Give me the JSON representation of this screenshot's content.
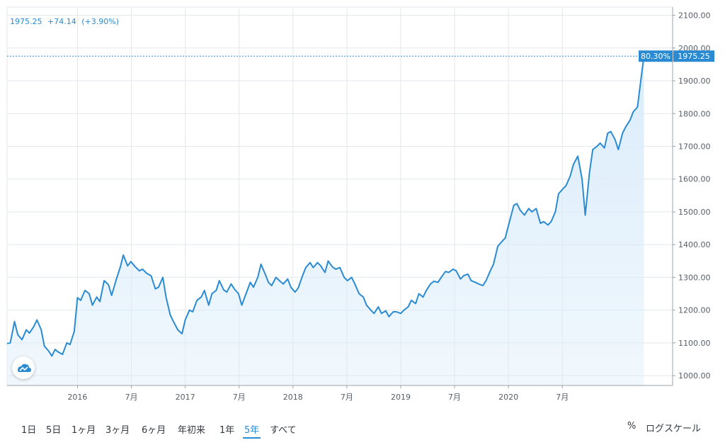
{
  "legend": {
    "price": "1975.25",
    "change": "+74.14",
    "change_pct": "(+3.90%)"
  },
  "last_badge": {
    "pct": "80.30%",
    "price": "1975.25"
  },
  "ranges": [
    {
      "label": "1日",
      "active": false
    },
    {
      "label": "5日",
      "active": false
    },
    {
      "label": "1ヶ月",
      "active": false
    },
    {
      "label": "3ヶ月",
      "active": false
    },
    {
      "label": "6ヶ月",
      "active": false
    },
    {
      "label": "年初来",
      "active": false
    },
    {
      "label": "1年",
      "active": false
    },
    {
      "label": "5年",
      "active": true
    },
    {
      "label": "すべて",
      "active": false
    }
  ],
  "tools": {
    "percent": "%",
    "log_scale": "ログスケール"
  },
  "colors": {
    "line": "#2a8bd2",
    "fill": "#d8ebfa",
    "badge_pct": "#2a8bd2",
    "badge_price": "#2a8bd2",
    "grid": "#e3e8ee"
  },
  "icons": {
    "logo": "tradingview-cloud-icon"
  },
  "chart_data": {
    "type": "area",
    "x_ticks": [
      "2016",
      "7月",
      "2017",
      "7月",
      "2018",
      "7月",
      "2019",
      "7月",
      "2020",
      "7月"
    ],
    "y_ticks": [
      "1000.00",
      "1100.00",
      "1200.00",
      "1300.00",
      "1400.00",
      "1500.00",
      "1600.00",
      "1700.00",
      "1800.00",
      "1900.00",
      "2000.00",
      "2100.00"
    ],
    "ylim": [
      970,
      2125
    ],
    "xlim": [
      0,
      60
    ],
    "grid": true,
    "series": [
      {
        "values": [
          [
            0.0,
            1098
          ],
          [
            0.3,
            1100
          ],
          [
            0.7,
            1165
          ],
          [
            1.0,
            1125
          ],
          [
            1.4,
            1110
          ],
          [
            1.8,
            1140
          ],
          [
            2.1,
            1130
          ],
          [
            2.5,
            1150
          ],
          [
            2.8,
            1170
          ],
          [
            3.2,
            1140
          ],
          [
            3.5,
            1090
          ],
          [
            3.9,
            1075
          ],
          [
            4.2,
            1060
          ],
          [
            4.5,
            1080
          ],
          [
            4.8,
            1072
          ],
          [
            5.2,
            1065
          ],
          [
            5.6,
            1100
          ],
          [
            5.9,
            1095
          ],
          [
            6.3,
            1135
          ],
          [
            6.6,
            1238
          ],
          [
            6.9,
            1230
          ],
          [
            7.3,
            1260
          ],
          [
            7.7,
            1250
          ],
          [
            8.0,
            1215
          ],
          [
            8.4,
            1240
          ],
          [
            8.7,
            1226
          ],
          [
            9.1,
            1290
          ],
          [
            9.5,
            1278
          ],
          [
            9.8,
            1245
          ],
          [
            10.2,
            1290
          ],
          [
            10.6,
            1330
          ],
          [
            10.9,
            1368
          ],
          [
            11.3,
            1335
          ],
          [
            11.6,
            1348
          ],
          [
            12.0,
            1333
          ],
          [
            12.4,
            1320
          ],
          [
            12.7,
            1325
          ],
          [
            13.1,
            1312
          ],
          [
            13.5,
            1305
          ],
          [
            13.9,
            1265
          ],
          [
            14.2,
            1270
          ],
          [
            14.6,
            1300
          ],
          [
            14.9,
            1240
          ],
          [
            15.3,
            1185
          ],
          [
            15.6,
            1165
          ],
          [
            16.0,
            1140
          ],
          [
            16.4,
            1128
          ],
          [
            16.7,
            1170
          ],
          [
            17.1,
            1200
          ],
          [
            17.4,
            1195
          ],
          [
            17.8,
            1230
          ],
          [
            18.2,
            1240
          ],
          [
            18.5,
            1260
          ],
          [
            18.9,
            1215
          ],
          [
            19.2,
            1250
          ],
          [
            19.6,
            1260
          ],
          [
            19.9,
            1290
          ],
          [
            20.3,
            1262
          ],
          [
            20.6,
            1255
          ],
          [
            21.0,
            1280
          ],
          [
            21.3,
            1265
          ],
          [
            21.7,
            1250
          ],
          [
            22.0,
            1215
          ],
          [
            22.4,
            1250
          ],
          [
            22.8,
            1285
          ],
          [
            23.1,
            1270
          ],
          [
            23.5,
            1300
          ],
          [
            23.8,
            1340
          ],
          [
            24.2,
            1310
          ],
          [
            24.5,
            1285
          ],
          [
            24.8,
            1275
          ],
          [
            25.2,
            1300
          ],
          [
            25.6,
            1288
          ],
          [
            25.9,
            1280
          ],
          [
            26.3,
            1295
          ],
          [
            26.6,
            1270
          ],
          [
            27.0,
            1255
          ],
          [
            27.3,
            1268
          ],
          [
            27.7,
            1305
          ],
          [
            28.0,
            1330
          ],
          [
            28.4,
            1345
          ],
          [
            28.7,
            1330
          ],
          [
            29.1,
            1345
          ],
          [
            29.4,
            1335
          ],
          [
            29.8,
            1315
          ],
          [
            30.1,
            1350
          ],
          [
            30.5,
            1332
          ],
          [
            30.8,
            1325
          ],
          [
            31.2,
            1330
          ],
          [
            31.6,
            1300
          ],
          [
            31.9,
            1290
          ],
          [
            32.3,
            1300
          ],
          [
            32.6,
            1280
          ],
          [
            33.0,
            1250
          ],
          [
            33.4,
            1240
          ],
          [
            33.7,
            1215
          ],
          [
            34.1,
            1200
          ],
          [
            34.4,
            1190
          ],
          [
            34.8,
            1210
          ],
          [
            35.1,
            1190
          ],
          [
            35.5,
            1198
          ],
          [
            35.8,
            1180
          ],
          [
            36.2,
            1195
          ],
          [
            36.5,
            1195
          ],
          [
            36.9,
            1190
          ],
          [
            37.2,
            1200
          ],
          [
            37.6,
            1210
          ],
          [
            37.9,
            1230
          ],
          [
            38.3,
            1220
          ],
          [
            38.6,
            1250
          ],
          [
            39.0,
            1240
          ],
          [
            39.3,
            1260
          ],
          [
            39.7,
            1280
          ],
          [
            40.0,
            1288
          ],
          [
            40.4,
            1285
          ],
          [
            40.7,
            1300
          ],
          [
            41.1,
            1318
          ],
          [
            41.4,
            1315
          ],
          [
            41.8,
            1325
          ],
          [
            42.1,
            1320
          ],
          [
            42.5,
            1295
          ],
          [
            42.8,
            1305
          ],
          [
            43.2,
            1310
          ],
          [
            43.5,
            1290
          ],
          [
            43.9,
            1285
          ],
          [
            44.2,
            1280
          ],
          [
            44.6,
            1275
          ],
          [
            44.9,
            1290
          ],
          [
            45.3,
            1320
          ],
          [
            45.6,
            1340
          ],
          [
            46.0,
            1395
          ],
          [
            46.4,
            1410
          ],
          [
            46.7,
            1420
          ],
          [
            47.1,
            1470
          ],
          [
            47.5,
            1520
          ],
          [
            47.8,
            1525
          ],
          [
            48.1,
            1505
          ],
          [
            48.5,
            1490
          ],
          [
            48.9,
            1510
          ],
          [
            49.2,
            1500
          ],
          [
            49.6,
            1510
          ],
          [
            50.0,
            1465
          ],
          [
            50.3,
            1470
          ],
          [
            50.7,
            1460
          ],
          [
            51.0,
            1470
          ],
          [
            51.4,
            1500
          ],
          [
            51.7,
            1555
          ],
          [
            52.1,
            1570
          ],
          [
            52.4,
            1580
          ],
          [
            52.8,
            1610
          ],
          [
            53.1,
            1645
          ],
          [
            53.5,
            1670
          ],
          [
            53.9,
            1600
          ],
          [
            54.2,
            1490
          ],
          [
            54.6,
            1620
          ],
          [
            54.9,
            1690
          ],
          [
            55.3,
            1700
          ],
          [
            55.6,
            1710
          ],
          [
            56.0,
            1695
          ],
          [
            56.3,
            1740
          ],
          [
            56.6,
            1745
          ],
          [
            57.0,
            1720
          ],
          [
            57.3,
            1690
          ],
          [
            57.7,
            1740
          ],
          [
            58.0,
            1760
          ],
          [
            58.4,
            1780
          ],
          [
            58.7,
            1805
          ],
          [
            59.1,
            1820
          ],
          [
            59.4,
            1900
          ],
          [
            59.7,
            1975.25
          ]
        ]
      }
    ]
  }
}
